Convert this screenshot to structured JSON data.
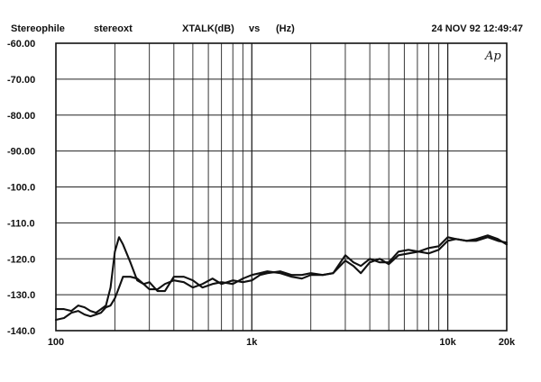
{
  "header": {
    "left1": "Stereophile",
    "left2": "stereoxt",
    "middle1": "XTALK(dB)",
    "middle2": "vs",
    "middle3": "(Hz)",
    "right": "24 NOV 92 12:49:47"
  },
  "logo": "Ap",
  "chart_data": {
    "type": "line",
    "xscale": "log",
    "xlim": [
      100,
      20000
    ],
    "ylim": [
      -140,
      -60
    ],
    "grid": true,
    "ytick_labels": [
      "-60.00",
      "-70.00",
      "-80.00",
      "-90.00",
      "-100.0",
      "-110.0",
      "-120.0",
      "-130.0",
      "-140.0"
    ],
    "yticks": [
      -60,
      -70,
      -80,
      -90,
      -100,
      -110,
      -120,
      -130,
      -140
    ],
    "xtick_labels": [
      "100",
      "1k",
      "10k",
      "20k"
    ],
    "xticks": [
      100,
      1000,
      10000,
      20000
    ],
    "series": [
      {
        "x": [
          100,
          110,
          120,
          130,
          140,
          150,
          160,
          170,
          180,
          190,
          200,
          210,
          220,
          240,
          260,
          280,
          300,
          330,
          360,
          400,
          450,
          500,
          560,
          630,
          700,
          800,
          900,
          1000,
          1100,
          1200,
          1400,
          1600,
          1800,
          2000,
          2300,
          2600,
          3000,
          3300,
          3600,
          4000,
          4500,
          5000,
          5600,
          6300,
          7100,
          8000,
          9000,
          10000,
          11000,
          12500,
          14000,
          16000,
          18000,
          20000
        ],
        "values": [
          -134,
          -134,
          -134.5,
          -133,
          -133.5,
          -134.5,
          -135,
          -134,
          -133,
          -128,
          -118,
          -114,
          -116,
          -121,
          -126,
          -127,
          -126.5,
          -129,
          -129,
          -125,
          -125,
          -126,
          -128,
          -127,
          -126.5,
          -127,
          -125.5,
          -124.5,
          -124,
          -123.5,
          -124,
          -125,
          -125.5,
          -124.5,
          -124.5,
          -124,
          -119,
          -121,
          -122,
          -120,
          -121,
          -121,
          -118,
          -117.5,
          -118,
          -117,
          -116.5,
          -114,
          -114.5,
          -115,
          -114.5,
          -113.5,
          -114.5,
          -116
        ]
      },
      {
        "x": [
          100,
          110,
          120,
          130,
          140,
          150,
          160,
          170,
          180,
          190,
          200,
          210,
          220,
          240,
          260,
          280,
          300,
          330,
          360,
          400,
          450,
          500,
          560,
          630,
          700,
          800,
          900,
          1000,
          1100,
          1200,
          1400,
          1600,
          1800,
          2000,
          2300,
          2600,
          3000,
          3300,
          3600,
          4000,
          4500,
          5000,
          5600,
          6300,
          7100,
          8000,
          9000,
          10000,
          11000,
          12500,
          14000,
          16000,
          18000,
          20000
        ],
        "values": [
          -137,
          -136.5,
          -135,
          -134.5,
          -135.5,
          -136,
          -135.5,
          -135,
          -133.5,
          -133,
          -131,
          -128,
          -125,
          -125,
          -125.5,
          -127,
          -128.5,
          -128.5,
          -127,
          -126,
          -126.5,
          -128,
          -127,
          -125.5,
          -127,
          -126,
          -126.5,
          -126,
          -124.5,
          -124,
          -123.5,
          -124.5,
          -124.5,
          -124,
          -124.5,
          -124,
          -120.5,
          -122,
          -124,
          -121,
          -120,
          -121.5,
          -119,
          -118.5,
          -118,
          -118.5,
          -117.5,
          -115,
          -114.5,
          -115,
          -115,
          -114,
          -115,
          -115.5
        ]
      }
    ]
  }
}
